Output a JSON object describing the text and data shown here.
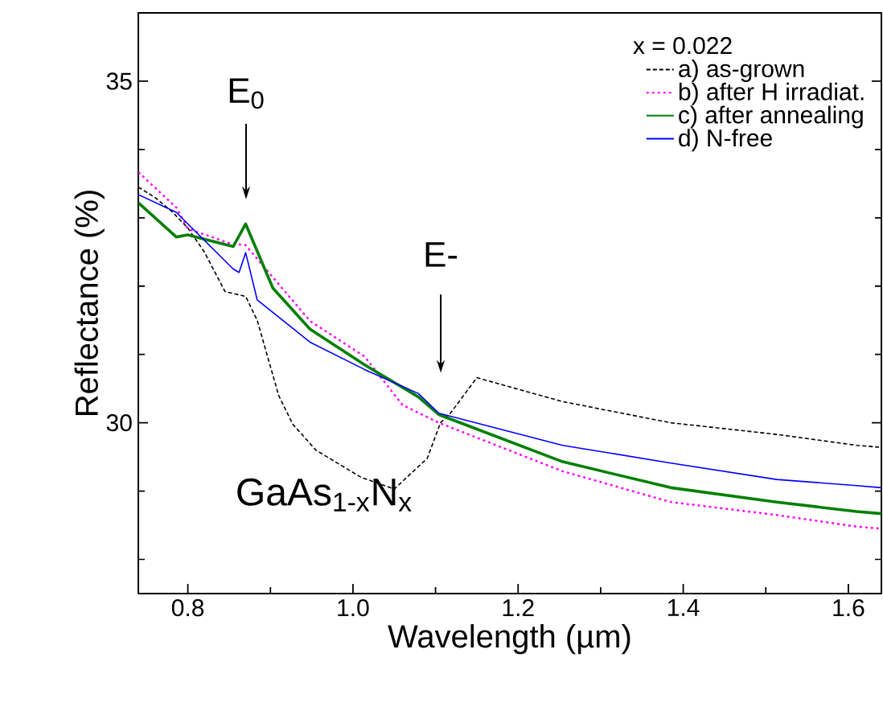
{
  "chart_data": {
    "type": "line",
    "xlabel": "Wavelength (µm)",
    "ylabel": "Reflectance (%)",
    "legend_title": "x = 0.022",
    "xlim": [
      0.74,
      1.64
    ],
    "ylim": [
      27.5,
      36
    ],
    "xticks": [
      0.8,
      {
        "value": 0.9,
        "label": null
      },
      {
        "value": 1.0,
        "label": "1.0"
      },
      {
        "value": 1.1,
        "label": null
      },
      1.2,
      {
        "value": 1.3,
        "label": null
      },
      1.4,
      {
        "value": 1.5,
        "label": null
      },
      1.6
    ],
    "yticks": [
      {
        "value": 28,
        "label": null
      },
      {
        "value": 29,
        "label": null
      },
      30,
      {
        "value": 31,
        "label": null
      },
      {
        "value": 32,
        "label": null
      },
      {
        "value": 33,
        "label": null
      },
      {
        "value": 34,
        "label": null
      },
      35
    ],
    "legend": "top right",
    "grid": false,
    "marker": "none",
    "annotations": [
      "E$_{0}$",
      "E-",
      "GaAs$_{1-x}$N$_{x}$"
    ],
    "series": [
      {
        "name": "a) as-grown",
        "color": "#000000",
        "line_style": "dashed",
        "x": [
          0.74,
          0.76,
          0.78,
          0.8,
          0.82,
          0.845,
          0.87,
          0.884,
          0.91,
          0.927,
          0.955,
          1.01,
          1.05,
          1.09,
          1.106,
          1.118,
          1.15,
          1.254,
          1.385,
          1.513,
          1.61,
          1.64
        ],
        "values": [
          33.45,
          33.3,
          33.1,
          32.85,
          32.5,
          31.92,
          31.85,
          31.5,
          30.4,
          29.98,
          29.6,
          29.2,
          29.03,
          29.48,
          30.0,
          30.14,
          30.66,
          30.31,
          30.0,
          29.83,
          29.67,
          29.64
        ]
      },
      {
        "name": "b) after H irradiat.",
        "color": "#ff00ff",
        "line_style": "dotted",
        "x": [
          0.74,
          0.786,
          0.8,
          0.85,
          0.87,
          0.898,
          0.948,
          1.014,
          1.06,
          1.104,
          1.254,
          1.385,
          1.513,
          1.61,
          1.64
        ],
        "values": [
          33.67,
          33.15,
          32.84,
          32.63,
          32.6,
          32.2,
          31.49,
          30.97,
          30.26,
          30.0,
          29.29,
          28.84,
          28.65,
          28.48,
          28.45
        ]
      },
      {
        "name": "c) after annealing",
        "color": "#008000",
        "line_style": "solid",
        "x": [
          0.74,
          0.786,
          0.8,
          0.855,
          0.87,
          0.903,
          0.948,
          1.014,
          1.079,
          1.104,
          1.254,
          1.385,
          1.513,
          1.61,
          1.64
        ],
        "values": [
          33.22,
          32.72,
          32.75,
          32.58,
          32.91,
          31.97,
          31.37,
          30.85,
          30.38,
          30.12,
          29.43,
          29.05,
          28.84,
          28.7,
          28.67
        ]
      },
      {
        "name": "d) N-free",
        "color": "#0000ff",
        "line_style": "solid",
        "x": [
          0.74,
          0.786,
          0.8,
          0.855,
          0.862,
          0.87,
          0.884,
          0.948,
          1.014,
          1.079,
          1.104,
          1.254,
          1.385,
          1.513,
          1.61,
          1.64
        ],
        "values": [
          33.34,
          33.08,
          32.91,
          32.25,
          32.2,
          32.49,
          31.8,
          31.18,
          30.78,
          30.43,
          30.14,
          29.67,
          29.41,
          29.17,
          29.08,
          29.05
        ]
      }
    ]
  }
}
